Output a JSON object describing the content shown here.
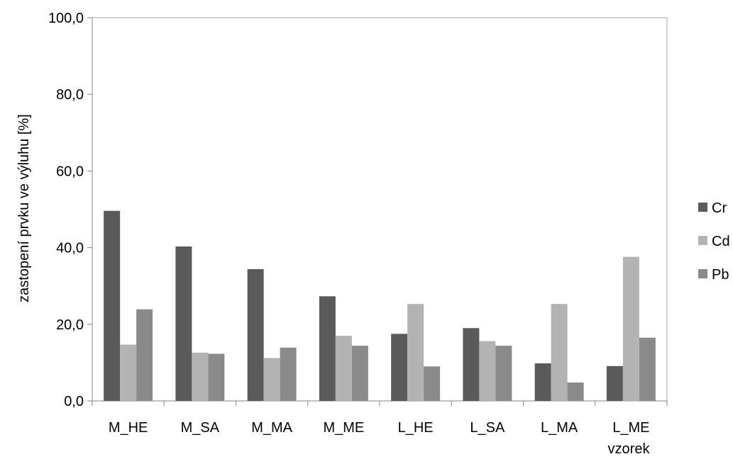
{
  "chart_data": {
    "type": "bar",
    "categories": [
      "M_HE",
      "M_SA",
      "M_MA",
      "M_ME",
      "L_HE",
      "L_SA",
      "L_MA",
      "L_ME"
    ],
    "series": [
      {
        "name": "Cr",
        "color": "#5a5a5a",
        "values": [
          49.6,
          40.3,
          34.4,
          27.3,
          17.5,
          19.0,
          9.8,
          9.1
        ]
      },
      {
        "name": "Cd",
        "color": "#b3b3b3",
        "values": [
          14.7,
          12.6,
          11.2,
          17.0,
          25.3,
          15.6,
          25.3,
          37.6
        ]
      },
      {
        "name": "Pb",
        "color": "#8a8a8a",
        "values": [
          23.9,
          12.3,
          13.9,
          14.4,
          9.0,
          14.4,
          4.8,
          16.5
        ]
      }
    ],
    "ylim": [
      0,
      100
    ],
    "yticks": [
      "0,0",
      "20,0",
      "40,0",
      "60,0",
      "80,0",
      "100,0"
    ],
    "xlabel": "vzorek",
    "ylabel": "zastopení prvku ve výluhu [%]",
    "legend_position": "right",
    "grid": false
  }
}
